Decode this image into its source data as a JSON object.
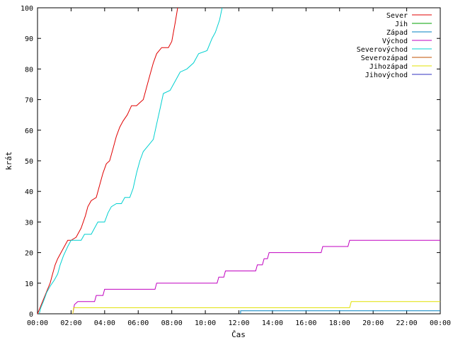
{
  "chart_data": {
    "type": "line",
    "xlabel": "Čas",
    "ylabel": "krát",
    "xlim_hours": [
      0,
      24
    ],
    "ylim": [
      0,
      100
    ],
    "x_ticks": [
      "00:00",
      "02:00",
      "04:00",
      "06:00",
      "08:00",
      "10:00",
      "12:00",
      "14:00",
      "16:00",
      "18:00",
      "20:00",
      "22:00",
      "00:00"
    ],
    "y_ticks": [
      0,
      10,
      20,
      30,
      40,
      50,
      60,
      70,
      80,
      90,
      100
    ],
    "grid": false,
    "legend_position": "top-right",
    "series": [
      {
        "name": "Sever",
        "color": "#e00000",
        "points": [
          [
            0.0,
            0
          ],
          [
            0.15,
            2
          ],
          [
            0.3,
            4
          ],
          [
            0.45,
            6
          ],
          [
            0.6,
            8
          ],
          [
            0.75,
            10
          ],
          [
            0.9,
            13
          ],
          [
            1.05,
            16
          ],
          [
            1.2,
            18
          ],
          [
            1.4,
            20
          ],
          [
            1.6,
            22
          ],
          [
            1.8,
            24
          ],
          [
            2.0,
            24
          ],
          [
            2.3,
            25
          ],
          [
            2.6,
            28
          ],
          [
            2.85,
            32
          ],
          [
            3.0,
            35
          ],
          [
            3.2,
            37
          ],
          [
            3.5,
            38
          ],
          [
            3.7,
            42
          ],
          [
            3.9,
            46
          ],
          [
            4.1,
            49
          ],
          [
            4.3,
            50
          ],
          [
            4.5,
            54
          ],
          [
            4.7,
            58
          ],
          [
            4.9,
            61
          ],
          [
            5.1,
            63
          ],
          [
            5.35,
            65
          ],
          [
            5.6,
            68
          ],
          [
            5.9,
            68
          ],
          [
            6.1,
            69
          ],
          [
            6.3,
            70
          ],
          [
            6.5,
            74
          ],
          [
            6.7,
            78
          ],
          [
            6.9,
            82
          ],
          [
            7.1,
            85
          ],
          [
            7.4,
            87
          ],
          [
            7.8,
            87
          ],
          [
            8.0,
            89
          ],
          [
            8.2,
            95
          ],
          [
            8.35,
            100
          ]
        ]
      },
      {
        "name": "Jih",
        "color": "#00a000",
        "points": []
      },
      {
        "name": "Západ",
        "color": "#0080c0",
        "points": [
          [
            12.1,
            0
          ],
          [
            12.1,
            1
          ],
          [
            24.0,
            1
          ]
        ]
      },
      {
        "name": "Východ",
        "color": "#c000c0",
        "points": [
          [
            2.1,
            0
          ],
          [
            2.2,
            3
          ],
          [
            2.4,
            4
          ],
          [
            3.4,
            4
          ],
          [
            3.5,
            6
          ],
          [
            3.9,
            6
          ],
          [
            4.0,
            8
          ],
          [
            7.0,
            8
          ],
          [
            7.1,
            10
          ],
          [
            10.7,
            10
          ],
          [
            10.8,
            12
          ],
          [
            11.1,
            12
          ],
          [
            11.2,
            14
          ],
          [
            13.0,
            14
          ],
          [
            13.1,
            16
          ],
          [
            13.4,
            16
          ],
          [
            13.5,
            18
          ],
          [
            13.7,
            18
          ],
          [
            13.8,
            20
          ],
          [
            16.9,
            20
          ],
          [
            17.0,
            22
          ],
          [
            18.5,
            22
          ],
          [
            18.6,
            24
          ],
          [
            24.0,
            24
          ]
        ]
      },
      {
        "name": "Severovýchod",
        "color": "#00d0d0",
        "points": [
          [
            0.1,
            0
          ],
          [
            0.2,
            2
          ],
          [
            0.35,
            4
          ],
          [
            0.55,
            7
          ],
          [
            0.75,
            9
          ],
          [
            1.0,
            11
          ],
          [
            1.2,
            13
          ],
          [
            1.35,
            16
          ],
          [
            1.55,
            19
          ],
          [
            1.8,
            22
          ],
          [
            2.0,
            24
          ],
          [
            2.6,
            24
          ],
          [
            2.8,
            26
          ],
          [
            3.2,
            26
          ],
          [
            3.4,
            28
          ],
          [
            3.6,
            30
          ],
          [
            4.0,
            30
          ],
          [
            4.2,
            33
          ],
          [
            4.4,
            35
          ],
          [
            4.7,
            36
          ],
          [
            5.0,
            36
          ],
          [
            5.2,
            38
          ],
          [
            5.5,
            38
          ],
          [
            5.7,
            41
          ],
          [
            5.9,
            46
          ],
          [
            6.1,
            50
          ],
          [
            6.3,
            53
          ],
          [
            6.6,
            55
          ],
          [
            6.9,
            57
          ],
          [
            7.1,
            62
          ],
          [
            7.3,
            67
          ],
          [
            7.5,
            72
          ],
          [
            7.9,
            73
          ],
          [
            8.2,
            76
          ],
          [
            8.5,
            79
          ],
          [
            8.9,
            80
          ],
          [
            9.3,
            82
          ],
          [
            9.6,
            85
          ],
          [
            10.1,
            86
          ],
          [
            10.4,
            90
          ],
          [
            10.6,
            92
          ],
          [
            10.85,
            96
          ],
          [
            11.0,
            100
          ]
        ]
      },
      {
        "name": "Severozápad",
        "color": "#c05000",
        "points": []
      },
      {
        "name": "Jihozápad",
        "color": "#e0e000",
        "points": [
          [
            2.1,
            0
          ],
          [
            2.15,
            2
          ],
          [
            18.6,
            2
          ],
          [
            18.7,
            4
          ],
          [
            24.0,
            4
          ]
        ]
      },
      {
        "name": "Jihovýchod",
        "color": "#3030c0",
        "points": []
      }
    ]
  }
}
